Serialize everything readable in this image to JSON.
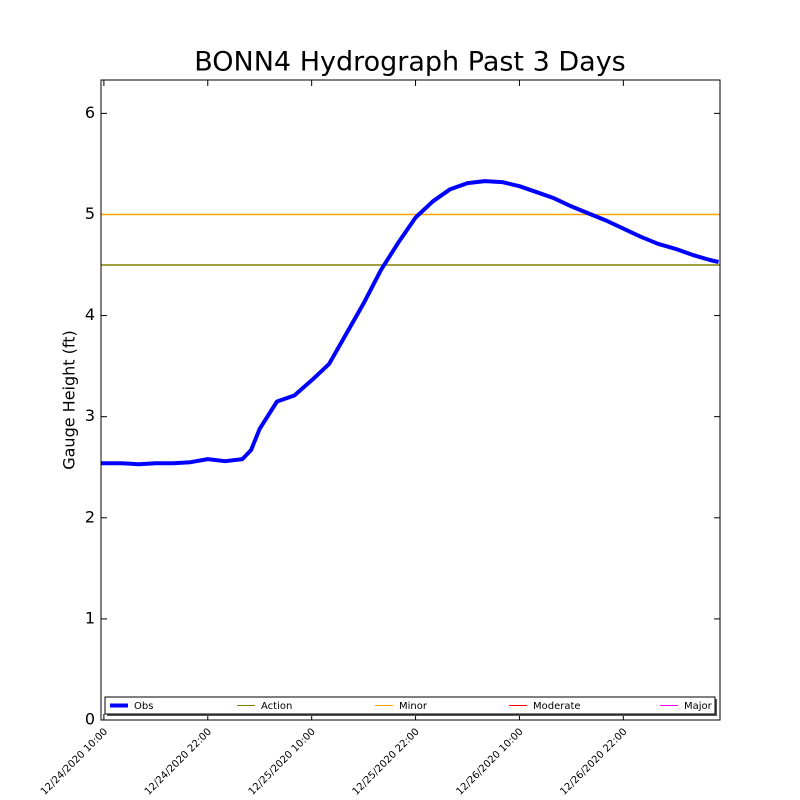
{
  "chart_data": {
    "type": "line",
    "title": "BONN4 Hydrograph Past 3 Days",
    "y_label": "Gauge Height (ft)",
    "x": [
      "2020-12-24T09:40",
      "2020-12-24T12:00",
      "2020-12-24T14:00",
      "2020-12-24T16:00",
      "2020-12-24T18:00",
      "2020-12-24T20:00",
      "2020-12-24T22:00",
      "2020-12-25T00:00",
      "2020-12-25T02:00",
      "2020-12-25T03:00",
      "2020-12-25T04:00",
      "2020-12-25T06:00",
      "2020-12-25T08:00",
      "2020-12-25T10:00",
      "2020-12-25T12:00",
      "2020-12-25T14:00",
      "2020-12-25T16:00",
      "2020-12-25T18:00",
      "2020-12-25T20:00",
      "2020-12-25T22:00",
      "2020-12-26T00:00",
      "2020-12-26T02:00",
      "2020-12-26T04:00",
      "2020-12-26T06:00",
      "2020-12-26T08:00",
      "2020-12-26T10:00",
      "2020-12-26T12:00",
      "2020-12-26T14:00",
      "2020-12-26T16:00",
      "2020-12-26T18:00",
      "2020-12-26T20:00",
      "2020-12-26T22:00",
      "2020-12-27T00:00",
      "2020-12-27T02:00",
      "2020-12-27T04:00",
      "2020-12-27T06:00",
      "2020-12-27T08:00",
      "2020-12-27T09:00"
    ],
    "series": [
      {
        "name": "Obs",
        "color": "#0000ff",
        "values": [
          2.54,
          2.54,
          2.53,
          2.54,
          2.54,
          2.55,
          2.58,
          2.56,
          2.58,
          2.67,
          2.88,
          3.15,
          3.21,
          3.36,
          3.52,
          3.82,
          4.12,
          4.45,
          4.72,
          4.97,
          5.13,
          5.25,
          5.31,
          5.33,
          5.32,
          5.28,
          5.22,
          5.16,
          5.08,
          5.01,
          4.94,
          4.86,
          4.78,
          4.71,
          4.66,
          4.6,
          4.55,
          4.53
        ]
      }
    ],
    "thresholds": [
      {
        "name": "Action",
        "color": "#808000",
        "value": 4.5
      },
      {
        "name": "Minor",
        "color": "#ffa500",
        "value": 5
      },
      {
        "name": "Moderate",
        "color": "#ff0000"
      },
      {
        "name": "Major",
        "color": "#ff00ff"
      }
    ],
    "xlim": [
      "2020-12-24T09:40",
      "2020-12-27T09:10"
    ],
    "xticks": [
      {
        "value": "2020-12-24T10:00",
        "label": "12/24/2020 10:00"
      },
      {
        "value": "2020-12-24T22:00",
        "label": "12/24/2020 22:00"
      },
      {
        "value": "2020-12-25T10:00",
        "label": "12/25/2020 10:00"
      },
      {
        "value": "2020-12-25T22:00",
        "label": "12/25/2020 22:00"
      },
      {
        "value": "2020-12-26T10:00",
        "label": "12/26/2020 10:00"
      },
      {
        "value": "2020-12-26T22:00",
        "label": "12/26/2020 22:00"
      }
    ],
    "ylim": [
      0,
      6.33
    ],
    "yticks": [
      0,
      1,
      2,
      3,
      4,
      5,
      6
    ],
    "legend": "bottom"
  }
}
